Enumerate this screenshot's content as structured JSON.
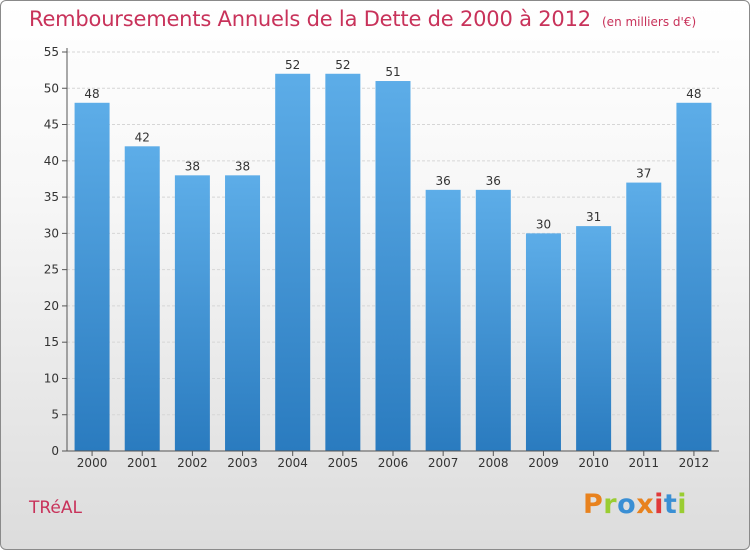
{
  "header": {
    "title": "Remboursements Annuels de la Dette de 2000 à 2012",
    "unit": "(en milliers d'€)"
  },
  "footer": {
    "commune": "TRéAL",
    "brand": "Proxiti",
    "brand_colors": [
      "#e8821e",
      "#9acd32",
      "#3a8fd4",
      "#e8821e",
      "#e03a3a",
      "#3a8fd4",
      "#9acd32"
    ]
  },
  "colors": {
    "bar_top": "#5dade8",
    "bar_bottom": "#2a7bbf",
    "title": "#c8325a"
  },
  "chart_data": {
    "type": "bar",
    "categories": [
      "2000",
      "2001",
      "2002",
      "2003",
      "2004",
      "2005",
      "2006",
      "2007",
      "2008",
      "2009",
      "2010",
      "2011",
      "2012"
    ],
    "values": [
      48,
      42,
      38,
      38,
      52,
      52,
      51,
      36,
      36,
      30,
      31,
      37,
      48
    ],
    "ylim": [
      0,
      55
    ],
    "yticks": [
      0,
      5,
      10,
      15,
      20,
      25,
      30,
      35,
      40,
      45,
      50,
      55
    ],
    "grid": true,
    "title": "Remboursements Annuels de la Dette de 2000 à 2012",
    "xlabel": "",
    "ylabel": ""
  }
}
